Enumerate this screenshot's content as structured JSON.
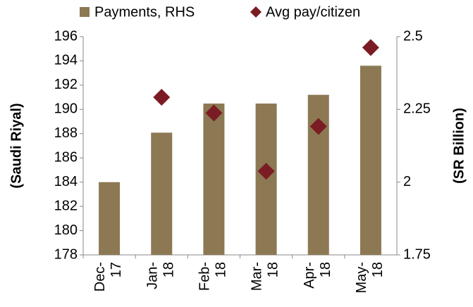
{
  "chart_data": {
    "type": "bar-scatter",
    "categories": [
      "Dec-17",
      "Jan-18",
      "Feb-18",
      "Mar-18",
      "Apr-18",
      "May-18"
    ],
    "series": [
      {
        "name": "Payments, RHS",
        "color": "#8c7853",
        "axis": "y2",
        "type": "bar",
        "values": [
          2.0,
          2.17,
          2.27,
          2.27,
          2.3,
          2.4
        ]
      },
      {
        "name": "Avg pay/citizen",
        "color": "#7b1c24",
        "axis": "y",
        "type": "scatter",
        "values": [
          null,
          191.0,
          189.7,
          184.9,
          188.6,
          195.1
        ]
      }
    ],
    "ylabel": "(Saudi Riyal)",
    "y2label": "(SR Billion)",
    "ylim": [
      178,
      196
    ],
    "yticks": [
      178,
      180,
      182,
      184,
      186,
      188,
      190,
      192,
      194,
      196
    ],
    "y2lim": [
      1.75,
      2.5
    ],
    "y2ticks": [
      1.75,
      2,
      2.25,
      2.5
    ],
    "legend": "top",
    "grid": false
  }
}
